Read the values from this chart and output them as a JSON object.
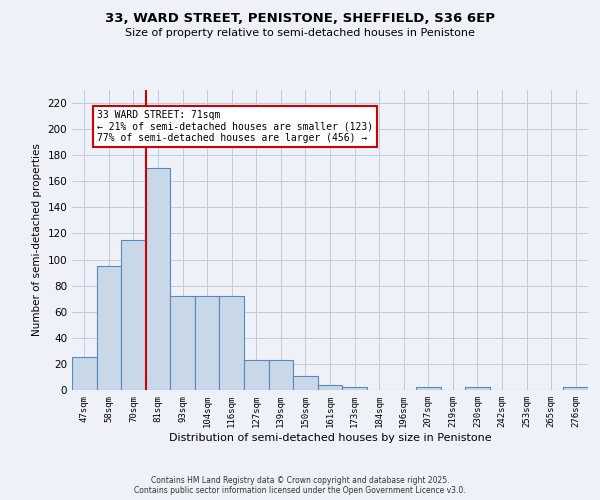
{
  "title1": "33, WARD STREET, PENISTONE, SHEFFIELD, S36 6EP",
  "title2": "Size of property relative to semi-detached houses in Penistone",
  "xlabel": "Distribution of semi-detached houses by size in Penistone",
  "ylabel": "Number of semi-detached properties",
  "categories": [
    "47sqm",
    "58sqm",
    "70sqm",
    "81sqm",
    "93sqm",
    "104sqm",
    "116sqm",
    "127sqm",
    "139sqm",
    "150sqm",
    "161sqm",
    "173sqm",
    "184sqm",
    "196sqm",
    "207sqm",
    "219sqm",
    "230sqm",
    "242sqm",
    "253sqm",
    "265sqm",
    "276sqm"
  ],
  "values": [
    25,
    95,
    115,
    170,
    72,
    72,
    72,
    23,
    23,
    11,
    4,
    2,
    0,
    0,
    2,
    0,
    2,
    0,
    0,
    0,
    2
  ],
  "bar_color": "#c8d8e8",
  "bar_edge_color": "#5588bb",
  "highlight_line_color": "#cc0000",
  "annotation_title": "33 WARD STREET: 71sqm",
  "annotation_line1": "← 21% of semi-detached houses are smaller (123)",
  "annotation_line2": "77% of semi-detached houses are larger (456) →",
  "annotation_box_color": "#ffffff",
  "annotation_box_edge": "#cc0000",
  "ylim": [
    0,
    230
  ],
  "yticks": [
    0,
    20,
    40,
    60,
    80,
    100,
    120,
    140,
    160,
    180,
    200,
    220
  ],
  "footnote": "Contains HM Land Registry data © Crown copyright and database right 2025.\nContains public sector information licensed under the Open Government Licence v3.0.",
  "bg_color": "#eef2f8",
  "grid_color": "#c0ccdd"
}
